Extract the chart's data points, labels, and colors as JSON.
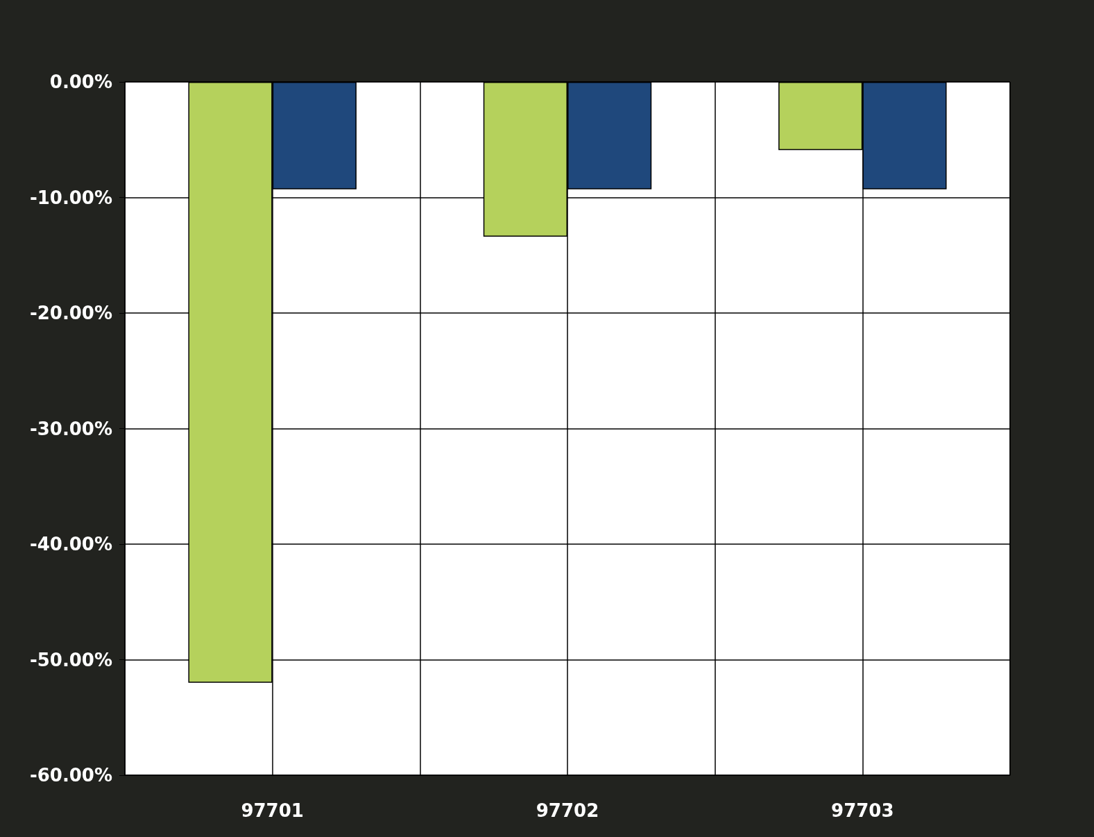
{
  "chart_data": {
    "type": "bar",
    "categories": [
      "97701",
      "97702",
      "97703"
    ],
    "series": [
      {
        "color": "#b5d15c",
        "values": [
          -52.0,
          -13.4,
          -5.9
        ]
      },
      {
        "color": "#1f487c",
        "values": [
          -9.3,
          -9.3,
          -9.3
        ]
      }
    ],
    "ylim": [
      -60,
      0
    ],
    "yticks": [
      {
        "value": 0,
        "label": "0.00%"
      },
      {
        "value": -10,
        "label": "-10.00%"
      },
      {
        "value": -20,
        "label": "-20.00%"
      },
      {
        "value": -30,
        "label": "-30.00%"
      },
      {
        "value": -40,
        "label": "-40.00%"
      },
      {
        "value": -50,
        "label": "-50.00%"
      },
      {
        "value": -60,
        "label": "-60.00%"
      }
    ],
    "grid": true
  }
}
